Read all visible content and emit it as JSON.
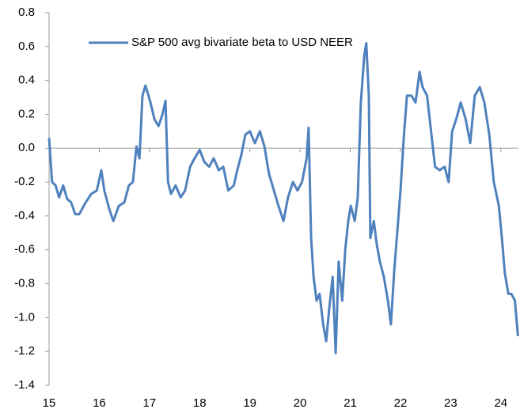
{
  "chart_data": {
    "type": "line",
    "x": [
      15.0,
      15.06,
      15.13,
      15.2,
      15.28,
      15.36,
      15.44,
      15.52,
      15.6,
      15.73,
      15.84,
      15.95,
      16.04,
      16.1,
      16.2,
      16.28,
      16.39,
      16.5,
      16.59,
      16.67,
      16.74,
      16.8,
      16.86,
      16.92,
      17.02,
      17.1,
      17.18,
      17.26,
      17.32,
      17.37,
      17.43,
      17.52,
      17.62,
      17.71,
      17.81,
      17.9,
      18.0,
      18.09,
      18.19,
      18.28,
      18.38,
      18.47,
      18.57,
      18.68,
      18.75,
      18.83,
      18.91,
      19.0,
      19.1,
      19.2,
      19.29,
      19.38,
      19.48,
      19.57,
      19.67,
      19.76,
      19.86,
      19.95,
      20.04,
      20.13,
      20.17,
      20.22,
      20.27,
      20.33,
      20.39,
      20.46,
      20.52,
      20.58,
      20.65,
      20.71,
      20.77,
      20.84,
      20.9,
      20.96,
      21.01,
      21.09,
      21.15,
      21.21,
      21.28,
      21.32,
      21.37,
      21.4,
      21.47,
      21.53,
      21.59,
      21.67,
      21.75,
      21.81,
      21.88,
      21.94,
      22.0,
      22.07,
      22.13,
      22.22,
      22.3,
      22.38,
      22.44,
      22.53,
      22.61,
      22.69,
      22.78,
      22.88,
      22.96,
      23.03,
      23.11,
      23.2,
      23.3,
      23.39,
      23.48,
      23.58,
      23.67,
      23.77,
      23.86,
      23.96,
      24.02,
      24.08,
      24.15,
      24.21,
      24.28,
      24.34
    ],
    "series": [
      {
        "name": "S&P 500 avg bivariate beta to USD NEER",
        "color": "#4f81bd",
        "values": [
          0.06,
          -0.2,
          -0.22,
          -0.29,
          -0.22,
          -0.3,
          -0.32,
          -0.39,
          -0.39,
          -0.32,
          -0.27,
          -0.25,
          -0.13,
          -0.25,
          -0.36,
          -0.43,
          -0.34,
          -0.32,
          -0.22,
          -0.2,
          0.01,
          -0.06,
          0.31,
          0.37,
          0.27,
          0.17,
          0.13,
          0.2,
          0.28,
          -0.2,
          -0.27,
          -0.22,
          -0.29,
          -0.25,
          -0.11,
          -0.06,
          -0.01,
          -0.08,
          -0.11,
          -0.06,
          -0.13,
          -0.11,
          -0.25,
          -0.22,
          -0.13,
          -0.04,
          0.08,
          0.1,
          0.03,
          0.1,
          0.01,
          -0.15,
          -0.25,
          -0.34,
          -0.43,
          -0.29,
          -0.2,
          -0.25,
          -0.2,
          -0.06,
          0.12,
          -0.53,
          -0.76,
          -0.9,
          -0.86,
          -1.04,
          -1.14,
          -0.95,
          -0.76,
          -1.21,
          -0.67,
          -0.9,
          -0.6,
          -0.43,
          -0.34,
          -0.43,
          -0.29,
          0.27,
          0.55,
          0.62,
          0.31,
          -0.53,
          -0.43,
          -0.57,
          -0.67,
          -0.76,
          -0.9,
          -1.04,
          -0.71,
          -0.48,
          -0.25,
          0.08,
          0.31,
          0.31,
          0.27,
          0.45,
          0.36,
          0.31,
          0.1,
          -0.11,
          -0.13,
          -0.11,
          -0.2,
          0.1,
          0.17,
          0.27,
          0.17,
          0.03,
          0.31,
          0.36,
          0.27,
          0.08,
          -0.2,
          -0.34,
          -0.53,
          -0.74,
          -0.86,
          -0.86,
          -0.9,
          -1.11
        ]
      }
    ],
    "xlim": [
      15,
      24.35
    ],
    "xticks": [
      15,
      16,
      17,
      18,
      19,
      20,
      21,
      22,
      23,
      24
    ],
    "ylim": [
      -1.4,
      0.8
    ],
    "yticks": [
      0.8,
      0.6,
      0.4,
      0.2,
      {
        "value": 0,
        "label": "0.0"
      },
      -0.2,
      -0.4,
      -0.6,
      -0.8,
      {
        "value": -1,
        "label": "-1.0"
      },
      -1.2,
      -1.4
    ],
    "legend": "upper-left",
    "grid": false
  }
}
